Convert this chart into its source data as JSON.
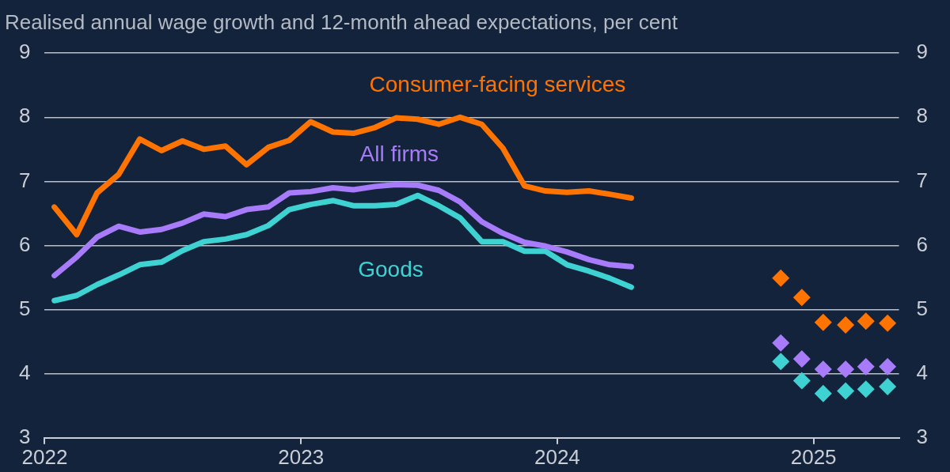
{
  "chart_data": {
    "type": "line",
    "title": "Realised annual wage growth and 12-month ahead expectations, per cent",
    "xlim": [
      "2022-01-01",
      "2025-05-01"
    ],
    "xticks": [
      "2022",
      "2023",
      "2024",
      "2025"
    ],
    "ylim": [
      3,
      9
    ],
    "yticks": [
      3,
      4,
      5,
      6,
      7,
      8,
      9
    ],
    "y2lim": [
      3,
      9
    ],
    "y2ticks": [
      3,
      4,
      5,
      6,
      7,
      8,
      9
    ],
    "grid": "y",
    "legend": false,
    "line_style": "solid",
    "x": [
      "2022-01-15",
      "2022-02-15",
      "2022-03-15",
      "2022-04-15",
      "2022-05-15",
      "2022-06-15",
      "2022-07-15",
      "2022-08-15",
      "2022-09-15",
      "2022-10-15",
      "2022-11-15",
      "2022-12-15",
      "2023-01-15",
      "2023-02-15",
      "2023-03-15",
      "2023-04-15",
      "2023-05-15",
      "2023-06-15",
      "2023-07-15",
      "2023-08-15",
      "2023-09-15",
      "2023-10-15",
      "2023-11-15",
      "2023-12-15",
      "2024-01-15",
      "2024-02-15",
      "2024-03-15",
      "2024-04-15"
    ],
    "series": [
      {
        "name": "Consumer-facing services",
        "color": "#ff7300",
        "marker": "none",
        "values": [
          6.6,
          6.17,
          6.82,
          7.11,
          7.66,
          7.48,
          7.63,
          7.5,
          7.55,
          7.26,
          7.53,
          7.64,
          7.93,
          7.77,
          7.75,
          7.84,
          7.99,
          7.97,
          7.89,
          8.0,
          7.89,
          7.52,
          6.93,
          6.85,
          6.83,
          6.85,
          6.8,
          6.74
        ]
      },
      {
        "name": "All firms",
        "color": "#a77bfa",
        "marker": "none",
        "values": [
          5.53,
          5.82,
          6.13,
          6.3,
          6.21,
          6.25,
          6.35,
          6.49,
          6.45,
          6.56,
          6.6,
          6.82,
          6.84,
          6.9,
          6.87,
          6.92,
          6.95,
          6.94,
          6.86,
          6.68,
          6.37,
          6.19,
          6.05,
          5.99,
          5.9,
          5.78,
          5.7,
          5.67
        ]
      },
      {
        "name": "Goods",
        "color": "#3ed3d2",
        "marker": "none",
        "values": [
          5.14,
          5.22,
          5.39,
          5.54,
          5.7,
          5.74,
          5.92,
          6.06,
          6.1,
          6.17,
          6.31,
          6.56,
          6.64,
          6.7,
          6.62,
          6.62,
          6.64,
          6.78,
          6.62,
          6.43,
          6.06,
          6.06,
          5.91,
          5.91,
          5.7,
          5.6,
          5.49,
          5.35
        ]
      },
      {
        "type": "scatter",
        "marker": "diamond",
        "color": "#ff7300",
        "x": [
          "2024-11-15",
          "2024-12-15",
          "2025-01-15",
          "2025-02-15",
          "2025-03-15",
          "2025-04-15"
        ],
        "values": [
          5.49,
          5.19,
          4.8,
          4.76,
          4.82,
          4.79
        ]
      },
      {
        "type": "scatter",
        "marker": "diamond",
        "color": "#a77bfa",
        "x": [
          "2024-11-15",
          "2024-12-15",
          "2025-01-15",
          "2025-02-15",
          "2025-03-15",
          "2025-04-15"
        ],
        "values": [
          4.48,
          4.23,
          4.07,
          4.07,
          4.11,
          4.11
        ]
      },
      {
        "type": "scatter",
        "marker": "diamond",
        "color": "#3ed3d2",
        "x": [
          "2024-11-15",
          "2024-12-15",
          "2025-01-15",
          "2025-02-15",
          "2025-03-15",
          "2025-04-15"
        ],
        "values": [
          4.19,
          3.89,
          3.69,
          3.73,
          3.76,
          3.8
        ]
      }
    ]
  }
}
